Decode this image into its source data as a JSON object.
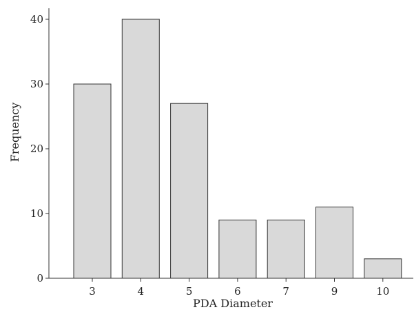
{
  "chart_data": {
    "type": "bar",
    "categories": [
      "3",
      "4",
      "5",
      "6",
      "7",
      "9",
      "10"
    ],
    "values": [
      30,
      40,
      27,
      9,
      9,
      11,
      3
    ],
    "xlabel": "PDA Diameter",
    "ylabel": "Frequency",
    "ylim": [
      0,
      40
    ],
    "yticks": [
      0,
      10,
      20,
      30,
      40
    ],
    "grid": false,
    "bar_color": "#d9d9d9",
    "bar_edge_color": "#333333"
  }
}
